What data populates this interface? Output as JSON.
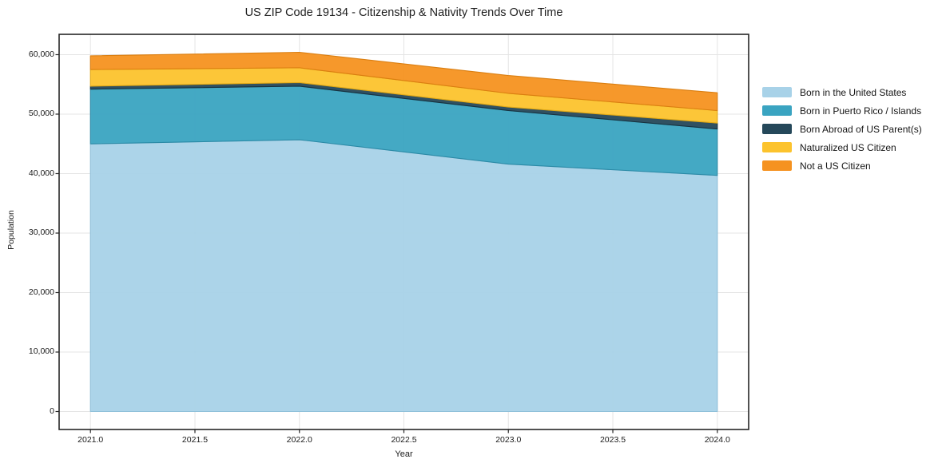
{
  "chart_data": {
    "type": "area",
    "stacked": true,
    "title": "US ZIP Code 19134 - Citizenship & Nativity Trends Over Time",
    "xlabel": "Year",
    "ylabel": "Population",
    "x": [
      2021,
      2022,
      2023,
      2024
    ],
    "series": [
      {
        "name": "Born in the United States",
        "color": "#a8d2e8",
        "edge": "#8fc0da",
        "values": [
          45000,
          45700,
          41600,
          39700
        ]
      },
      {
        "name": "Born in Puerto Rico / Islands",
        "color": "#3aa4c1",
        "edge": "#2b8aa6",
        "values": [
          9200,
          9000,
          9000,
          7800
        ]
      },
      {
        "name": "Born Abroad of US Parent(s)",
        "color": "#25485a",
        "edge": "#17323f",
        "values": [
          500,
          600,
          600,
          1000
        ]
      },
      {
        "name": "Naturalized US Citizen",
        "color": "#fcc32d",
        "edge": "#e2a915",
        "values": [
          2800,
          2500,
          2300,
          2100
        ]
      },
      {
        "name": "Not a US Citizen",
        "color": "#f59220",
        "edge": "#da7e10",
        "values": [
          2300,
          2600,
          3000,
          3000
        ]
      }
    ],
    "stack_totals": [
      59800,
      60400,
      56500,
      53600
    ],
    "xlim": [
      2020.85,
      2024.15
    ],
    "ylim": [
      -3020,
      63420
    ],
    "xticks": [
      2021.0,
      2021.5,
      2022.0,
      2022.5,
      2023.0,
      2023.5,
      2024.0
    ],
    "xtick_labels": [
      "2021.0",
      "2021.5",
      "2022.0",
      "2022.5",
      "2023.0",
      "2023.5",
      "2024.0"
    ],
    "yticks": [
      0,
      10000,
      20000,
      30000,
      40000,
      50000,
      60000
    ],
    "ytick_labels": [
      "0",
      "10,000",
      "20,000",
      "30,000",
      "40,000",
      "50,000",
      "60,000"
    ],
    "grid": true,
    "legend_position": "outside-right",
    "colors": {
      "grid": "#e4e4e4",
      "frame": "#262626",
      "text": "#1a1a1a",
      "background": "#ffffff"
    }
  }
}
